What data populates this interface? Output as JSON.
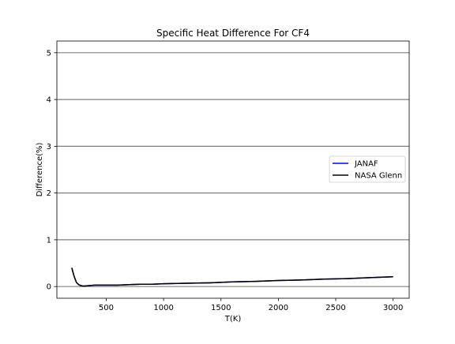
{
  "chart_data": {
    "type": "line",
    "title": "Specific Heat Difference For CF4",
    "xlabel": "T(K)",
    "ylabel": "Difference(%)",
    "xlim": [
      70,
      3140
    ],
    "ylim": [
      -0.25,
      5.25
    ],
    "xticks": [
      500,
      1000,
      1500,
      2000,
      2500,
      3000
    ],
    "yticks": [
      0,
      1,
      2,
      3,
      4,
      5
    ],
    "grid": "horizontal",
    "legend": "center-right",
    "series": [
      {
        "name": "JANAF",
        "color": "#0000ff",
        "x": [
          200,
          220,
          240,
          260,
          280,
          300,
          350,
          400,
          500,
          600,
          700,
          800,
          900,
          1000,
          1200,
          1400,
          1600,
          1800,
          2000,
          2200,
          2400,
          2600,
          2800,
          3000
        ],
        "y": [
          0.4,
          0.22,
          0.09,
          0.04,
          0.02,
          0.01,
          0.02,
          0.03,
          0.03,
          0.03,
          0.04,
          0.05,
          0.05,
          0.06,
          0.07,
          0.08,
          0.1,
          0.11,
          0.13,
          0.14,
          0.16,
          0.17,
          0.19,
          0.21
        ]
      },
      {
        "name": "NASA Glenn",
        "color": "#000000",
        "x": [
          200,
          220,
          240,
          260,
          280,
          300,
          350,
          400,
          500,
          600,
          700,
          800,
          900,
          1000,
          1200,
          1400,
          1600,
          1800,
          2000,
          2200,
          2400,
          2600,
          2800,
          3000
        ],
        "y": [
          0.4,
          0.22,
          0.09,
          0.04,
          0.02,
          0.01,
          0.02,
          0.03,
          0.03,
          0.03,
          0.04,
          0.05,
          0.05,
          0.06,
          0.07,
          0.08,
          0.1,
          0.11,
          0.13,
          0.14,
          0.16,
          0.17,
          0.19,
          0.21
        ]
      }
    ]
  }
}
